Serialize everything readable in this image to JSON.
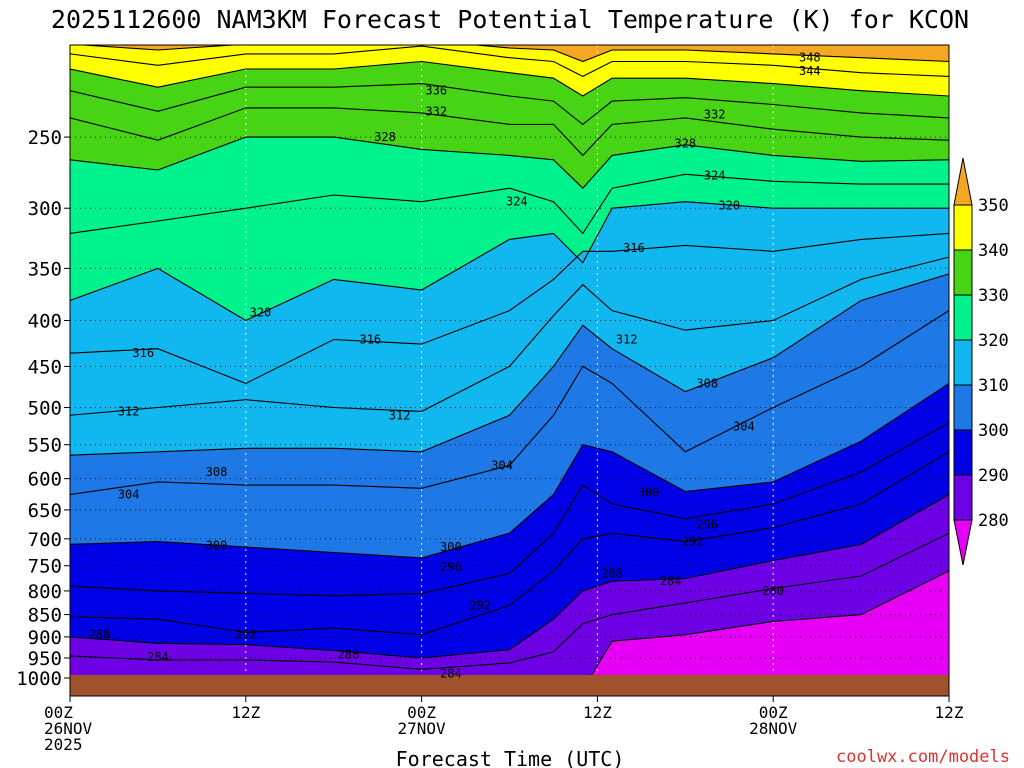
{
  "chart_data": {
    "type": "heatmap",
    "title": "2025112600 NAM3KM Forecast Potential Temperature (K) for KCON",
    "xlabel": "Forecast Time (UTC)",
    "ylabel": "",
    "watermark": "coolwx.com/models",
    "x_ticks": [
      {
        "hour": 0,
        "lines": [
          "00Z",
          "26NOV",
          "2025"
        ]
      },
      {
        "hour": 12,
        "lines": [
          "12Z"
        ]
      },
      {
        "hour": 24,
        "lines": [
          "00Z",
          "27NOV"
        ]
      },
      {
        "hour": 36,
        "lines": [
          "12Z"
        ]
      },
      {
        "hour": 48,
        "lines": [
          "00Z",
          "28NOV"
        ]
      },
      {
        "hour": 60,
        "lines": [
          "12Z"
        ]
      }
    ],
    "xlim": [
      0,
      60
    ],
    "y_ticks": [
      250,
      300,
      350,
      400,
      450,
      500,
      550,
      600,
      650,
      700,
      750,
      800,
      850,
      900,
      950,
      1000
    ],
    "ylim": [
      200,
      1000
    ],
    "ylog": true,
    "colorbar": {
      "ticks": [
        350,
        340,
        330,
        320,
        310,
        300,
        290,
        280
      ],
      "bins": [
        {
          "from": 350,
          "to": 360,
          "color": "#f5a623"
        },
        {
          "from": 340,
          "to": 350,
          "color": "#ffff00"
        },
        {
          "from": 330,
          "to": 340,
          "color": "#46d414"
        },
        {
          "from": 320,
          "to": 330,
          "color": "#00f28c"
        },
        {
          "from": 310,
          "to": 320,
          "color": "#11b8f0"
        },
        {
          "from": 300,
          "to": 310,
          "color": "#1e78e6"
        },
        {
          "from": 290,
          "to": 300,
          "color": "#0000e6"
        },
        {
          "from": 280,
          "to": 290,
          "color": "#6e00e6"
        },
        {
          "from": 270,
          "to": 280,
          "color": "#e600f5"
        }
      ]
    },
    "ground_color": "#a0522d",
    "series": [
      {
        "name": "280",
        "values": [
          [
            0,
            1030
          ],
          [
            6,
            1030
          ],
          [
            12,
            1030
          ],
          [
            18,
            1030
          ],
          [
            24,
            1030
          ],
          [
            30,
            1030
          ],
          [
            33,
            1030
          ],
          [
            35,
            1030
          ],
          [
            37,
            910
          ],
          [
            42,
            895
          ],
          [
            48,
            865
          ],
          [
            54,
            850
          ],
          [
            60,
            760
          ]
        ]
      },
      {
        "name": "284",
        "values": [
          [
            0,
            945
          ],
          [
            6,
            955
          ],
          [
            12,
            955
          ],
          [
            18,
            960
          ],
          [
            24,
            978
          ],
          [
            30,
            962
          ],
          [
            33,
            935
          ],
          [
            35,
            870
          ],
          [
            37,
            850
          ],
          [
            42,
            825
          ],
          [
            48,
            795
          ],
          [
            54,
            770
          ],
          [
            60,
            690
          ]
        ]
      },
      {
        "name": "288",
        "values": [
          [
            0,
            900
          ],
          [
            6,
            915
          ],
          [
            12,
            918
          ],
          [
            18,
            932
          ],
          [
            24,
            950
          ],
          [
            30,
            930
          ],
          [
            33,
            860
          ],
          [
            35,
            800
          ],
          [
            37,
            780
          ],
          [
            42,
            775
          ],
          [
            48,
            740
          ],
          [
            54,
            710
          ],
          [
            60,
            625
          ]
        ]
      },
      {
        "name": "292",
        "values": [
          [
            0,
            855
          ],
          [
            6,
            860
          ],
          [
            12,
            890
          ],
          [
            18,
            880
          ],
          [
            24,
            895
          ],
          [
            30,
            830
          ],
          [
            33,
            760
          ],
          [
            35,
            700
          ],
          [
            37,
            690
          ],
          [
            42,
            705
          ],
          [
            48,
            680
          ],
          [
            54,
            640
          ],
          [
            60,
            560
          ]
        ]
      },
      {
        "name": "296",
        "values": [
          [
            0,
            790
          ],
          [
            6,
            800
          ],
          [
            12,
            805
          ],
          [
            18,
            810
          ],
          [
            24,
            805
          ],
          [
            30,
            765
          ],
          [
            33,
            690
          ],
          [
            35,
            610
          ],
          [
            37,
            640
          ],
          [
            42,
            665
          ],
          [
            48,
            640
          ],
          [
            54,
            590
          ],
          [
            60,
            520
          ]
        ]
      },
      {
        "name": "300",
        "values": [
          [
            0,
            710
          ],
          [
            6,
            705
          ],
          [
            12,
            715
          ],
          [
            18,
            725
          ],
          [
            24,
            735
          ],
          [
            30,
            690
          ],
          [
            33,
            625
          ],
          [
            35,
            550
          ],
          [
            37,
            560
          ],
          [
            42,
            620
          ],
          [
            48,
            605
          ],
          [
            54,
            545
          ],
          [
            60,
            470
          ]
        ]
      },
      {
        "name": "304",
        "values": [
          [
            0,
            625
          ],
          [
            6,
            605
          ],
          [
            12,
            610
          ],
          [
            18,
            610
          ],
          [
            24,
            615
          ],
          [
            30,
            580
          ],
          [
            33,
            510
          ],
          [
            35,
            450
          ],
          [
            37,
            470
          ],
          [
            42,
            560
          ],
          [
            48,
            500
          ],
          [
            54,
            450
          ],
          [
            60,
            390
          ]
        ]
      },
      {
        "name": "308",
        "values": [
          [
            0,
            565
          ],
          [
            6,
            560
          ],
          [
            12,
            555
          ],
          [
            18,
            555
          ],
          [
            24,
            560
          ],
          [
            30,
            510
          ],
          [
            33,
            450
          ],
          [
            35,
            405
          ],
          [
            37,
            430
          ],
          [
            42,
            480
          ],
          [
            48,
            440
          ],
          [
            54,
            380
          ],
          [
            60,
            355
          ]
        ]
      },
      {
        "name": "312",
        "values": [
          [
            0,
            510
          ],
          [
            6,
            500
          ],
          [
            12,
            490
          ],
          [
            18,
            500
          ],
          [
            24,
            505
          ],
          [
            30,
            450
          ],
          [
            33,
            395
          ],
          [
            35,
            365
          ],
          [
            37,
            390
          ],
          [
            42,
            410
          ],
          [
            48,
            400
          ],
          [
            54,
            360
          ],
          [
            60,
            340
          ]
        ]
      },
      {
        "name": "316",
        "values": [
          [
            0,
            435
          ],
          [
            6,
            430
          ],
          [
            12,
            470
          ],
          [
            18,
            420
          ],
          [
            24,
            425
          ],
          [
            30,
            390
          ],
          [
            33,
            360
          ],
          [
            35,
            335
          ],
          [
            37,
            335
          ],
          [
            42,
            330
          ],
          [
            48,
            335
          ],
          [
            54,
            325
          ],
          [
            60,
            320
          ]
        ]
      },
      {
        "name": "320",
        "values": [
          [
            0,
            380
          ],
          [
            6,
            350
          ],
          [
            12,
            400
          ],
          [
            18,
            360
          ],
          [
            24,
            370
          ],
          [
            30,
            325
          ],
          [
            33,
            320
          ],
          [
            35,
            345
          ],
          [
            37,
            300
          ],
          [
            42,
            295
          ],
          [
            48,
            300
          ],
          [
            54,
            300
          ],
          [
            60,
            300
          ]
        ]
      },
      {
        "name": "324",
        "values": [
          [
            0,
            320
          ],
          [
            6,
            310
          ],
          [
            12,
            300
          ],
          [
            18,
            290
          ],
          [
            24,
            295
          ],
          [
            30,
            285
          ],
          [
            33,
            295
          ],
          [
            35,
            320
          ],
          [
            37,
            285
          ],
          [
            42,
            275
          ],
          [
            48,
            280
          ],
          [
            54,
            282
          ],
          [
            60,
            282
          ]
        ]
      },
      {
        "name": "328",
        "values": [
          [
            0,
            265
          ],
          [
            6,
            272
          ],
          [
            12,
            250
          ],
          [
            18,
            250
          ],
          [
            24,
            258
          ],
          [
            30,
            262
          ],
          [
            33,
            265
          ],
          [
            35,
            285
          ],
          [
            37,
            262
          ],
          [
            42,
            255
          ],
          [
            48,
            262
          ],
          [
            54,
            266
          ],
          [
            60,
            265
          ]
        ]
      },
      {
        "name": "332",
        "values": [
          [
            0,
            238
          ],
          [
            6,
            252
          ],
          [
            12,
            232
          ],
          [
            18,
            232
          ],
          [
            24,
            235
          ],
          [
            30,
            242
          ],
          [
            33,
            242
          ],
          [
            35,
            262
          ],
          [
            37,
            242
          ],
          [
            42,
            238
          ],
          [
            48,
            245
          ],
          [
            54,
            250
          ],
          [
            60,
            252
          ]
        ]
      },
      {
        "name": "336",
        "values": [
          [
            0,
            222
          ],
          [
            6,
            234
          ],
          [
            12,
            220
          ],
          [
            18,
            220
          ],
          [
            24,
            218
          ],
          [
            30,
            225
          ],
          [
            33,
            228
          ],
          [
            35,
            242
          ],
          [
            37,
            228
          ],
          [
            42,
            226
          ],
          [
            48,
            230
          ],
          [
            54,
            235
          ],
          [
            60,
            238
          ]
        ]
      },
      {
        "name": "340",
        "values": [
          [
            0,
            210
          ],
          [
            6,
            220
          ],
          [
            12,
            210
          ],
          [
            18,
            210
          ],
          [
            24,
            206
          ],
          [
            30,
            212
          ],
          [
            33,
            215
          ],
          [
            35,
            225
          ],
          [
            37,
            215
          ],
          [
            42,
            215
          ],
          [
            48,
            218
          ],
          [
            54,
            222
          ],
          [
            60,
            225
          ]
        ]
      },
      {
        "name": "344",
        "values": [
          [
            0,
            202
          ],
          [
            6,
            208
          ],
          [
            12,
            202
          ],
          [
            18,
            202
          ],
          [
            24,
            198
          ],
          [
            30,
            204
          ],
          [
            33,
            206
          ],
          [
            35,
            214
          ],
          [
            37,
            206
          ],
          [
            42,
            206
          ],
          [
            48,
            208
          ],
          [
            54,
            212
          ],
          [
            60,
            214
          ]
        ]
      },
      {
        "name": "348",
        "values": [
          [
            0,
            197
          ],
          [
            6,
            200
          ],
          [
            12,
            197
          ],
          [
            18,
            197
          ],
          [
            24,
            195
          ],
          [
            30,
            199
          ],
          [
            33,
            200
          ],
          [
            35,
            206
          ],
          [
            37,
            200
          ],
          [
            42,
            200
          ],
          [
            48,
            202
          ],
          [
            54,
            204
          ],
          [
            60,
            206
          ]
        ]
      }
    ],
    "contour_labels": [
      {
        "text": "348",
        "hour": 50.5,
        "p": 204
      },
      {
        "text": "344",
        "hour": 50.5,
        "p": 211
      },
      {
        "text": "336",
        "hour": 25.0,
        "p": 222
      },
      {
        "text": "332",
        "hour": 25.0,
        "p": 234
      },
      {
        "text": "332",
        "hour": 44.0,
        "p": 236
      },
      {
        "text": "328",
        "hour": 21.5,
        "p": 250
      },
      {
        "text": "328",
        "hour": 42.0,
        "p": 254
      },
      {
        "text": "324",
        "hour": 44.0,
        "p": 276
      },
      {
        "text": "324",
        "hour": 30.5,
        "p": 295
      },
      {
        "text": "320",
        "hour": 45.0,
        "p": 298
      },
      {
        "text": "316",
        "hour": 38.5,
        "p": 332
      },
      {
        "text": "320",
        "hour": 13.0,
        "p": 392
      },
      {
        "text": "316",
        "hour": 20.5,
        "p": 420
      },
      {
        "text": "312",
        "hour": 38.0,
        "p": 420
      },
      {
        "text": "316",
        "hour": 5.0,
        "p": 435
      },
      {
        "text": "308",
        "hour": 43.5,
        "p": 470
      },
      {
        "text": "312",
        "hour": 4.0,
        "p": 505
      },
      {
        "text": "312",
        "hour": 22.5,
        "p": 510
      },
      {
        "text": "304",
        "hour": 46.0,
        "p": 525
      },
      {
        "text": "304",
        "hour": 29.5,
        "p": 580
      },
      {
        "text": "308",
        "hour": 10.0,
        "p": 590
      },
      {
        "text": "304",
        "hour": 4.0,
        "p": 625
      },
      {
        "text": "300",
        "hour": 39.5,
        "p": 622
      },
      {
        "text": "296",
        "hour": 43.5,
        "p": 675
      },
      {
        "text": "292",
        "hour": 42.5,
        "p": 705
      },
      {
        "text": "300",
        "hour": 10.0,
        "p": 712
      },
      {
        "text": "300",
        "hour": 26.0,
        "p": 715
      },
      {
        "text": "296",
        "hour": 26.0,
        "p": 752
      },
      {
        "text": "288",
        "hour": 37.0,
        "p": 765
      },
      {
        "text": "284",
        "hour": 41.0,
        "p": 780
      },
      {
        "text": "280",
        "hour": 48.0,
        "p": 800
      },
      {
        "text": "292",
        "hour": 28.0,
        "p": 830
      },
      {
        "text": "288",
        "hour": 2.0,
        "p": 895
      },
      {
        "text": "292",
        "hour": 12.0,
        "p": 895
      },
      {
        "text": "288",
        "hour": 19.0,
        "p": 942
      },
      {
        "text": "284",
        "hour": 6.0,
        "p": 948
      },
      {
        "text": "284",
        "hour": 26.0,
        "p": 988
      }
    ]
  }
}
